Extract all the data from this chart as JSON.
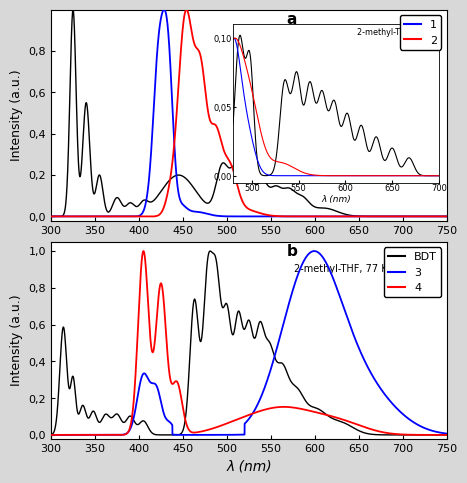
{
  "panel_a": {
    "yticks": [
      0.0,
      0.2,
      0.4,
      0.6,
      0.8
    ],
    "ylabel": "Intensity (a.u.)",
    "xlabel": "λ (nm)",
    "legend_labels": [
      "1",
      "2"
    ],
    "legend_colors": [
      "blue",
      "red"
    ],
    "inset_label": "2-methyl-THF, 77 K"
  },
  "panel_b": {
    "yticks": [
      0.0,
      0.2,
      0.4,
      0.6,
      0.8,
      1.0
    ],
    "ylabel": "Intensity (a.u.)",
    "xlabel": "λ (nm)",
    "legend_labels": [
      "BDT",
      "3",
      "4"
    ],
    "legend_colors": [
      "black",
      "blue",
      "red"
    ],
    "legend_label": "2-methyl-THF, 77 K"
  },
  "xlim": [
    300,
    750
  ],
  "xticks": [
    300,
    350,
    400,
    450,
    500,
    550,
    600,
    650,
    700,
    750
  ],
  "bg_color": "#d8d8d8",
  "plot_bg": "#ffffff"
}
